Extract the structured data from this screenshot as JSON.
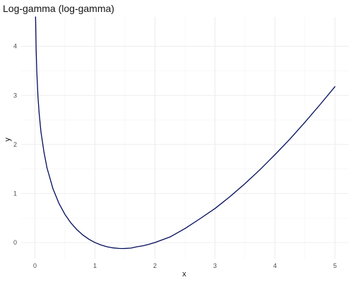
{
  "chart_data": {
    "type": "line",
    "title": "Log-gamma (log-gamma)",
    "xlabel": "x",
    "ylabel": "y",
    "xlim": [
      -0.23,
      5.23
    ],
    "ylim": [
      -0.33,
      4.6
    ],
    "x_ticks": [
      0,
      1,
      2,
      3,
      4,
      5
    ],
    "y_ticks": [
      0,
      1,
      2,
      3,
      4
    ],
    "grid": true,
    "legend": "none",
    "colors": {
      "line": "#000b5a",
      "grid_major": "#ebebeb",
      "grid_minor": "#f3f3f3"
    },
    "series": [
      {
        "x": [
          0.01,
          0.02,
          0.03,
          0.05,
          0.07,
          0.1,
          0.15,
          0.2,
          0.3,
          0.4,
          0.5,
          0.6,
          0.7,
          0.8,
          0.9,
          1.0,
          1.1,
          1.2,
          1.3,
          1.4,
          1.46,
          1.5,
          1.6,
          1.7,
          1.8,
          1.9,
          2.0,
          2.25,
          2.5,
          2.75,
          3.0,
          3.25,
          3.5,
          3.75,
          4.0,
          4.25,
          4.5,
          4.75,
          5.0
        ],
        "y": [
          4.5995,
          3.9003,
          3.4901,
          2.9702,
          2.6285,
          2.2527,
          1.8432,
          1.5241,
          1.0958,
          0.7966,
          0.5724,
          0.3982,
          0.2609,
          0.1521,
          0.0663,
          0.0,
          -0.0498,
          -0.0854,
          -0.1084,
          -0.1196,
          -0.1215,
          -0.1208,
          -0.1126,
          -0.0854,
          -0.0659,
          -0.0357,
          0.0,
          0.1133,
          0.2847,
          0.4855,
          0.6931,
          0.9373,
          1.201,
          1.4854,
          1.7918,
          2.1107,
          2.4537,
          2.8105,
          3.1781
        ]
      }
    ]
  }
}
